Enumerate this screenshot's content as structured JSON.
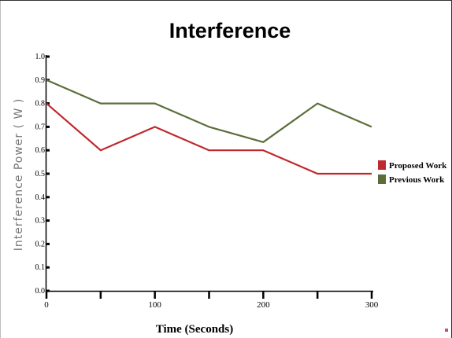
{
  "chart_data": {
    "type": "line",
    "title": "Interference",
    "xlabel": "Time (Seconds)",
    "ylabel": "Interference Power ( W )",
    "x": [
      0,
      50,
      100,
      150,
      200,
      250,
      300
    ],
    "x_tick_labels": [
      "0",
      "",
      "100",
      "",
      "200",
      "",
      "300"
    ],
    "y_ticks": [
      0.0,
      0.1,
      0.2,
      0.3,
      0.4,
      0.5,
      0.6,
      0.7,
      0.8,
      0.9,
      1.0
    ],
    "y_tick_labels": [
      "0.0",
      "0.1",
      "0.2",
      "0.3",
      "0.4",
      "0.5",
      "0.6",
      "0.7",
      "0.8",
      "0.9",
      "1.0"
    ],
    "xlim": [
      0,
      300
    ],
    "ylim": [
      0,
      1.0
    ],
    "grid": false,
    "legend_position": "right",
    "series": [
      {
        "name": "Proposed Work",
        "color": "#c0282d",
        "values": [
          0.8,
          0.6,
          0.7,
          0.6,
          0.6,
          0.5,
          0.5
        ]
      },
      {
        "name": "Previous Work",
        "color": "#5b6e3a",
        "values": [
          0.9,
          0.8,
          0.8,
          0.7,
          0.635,
          0.8,
          0.7
        ]
      }
    ]
  }
}
